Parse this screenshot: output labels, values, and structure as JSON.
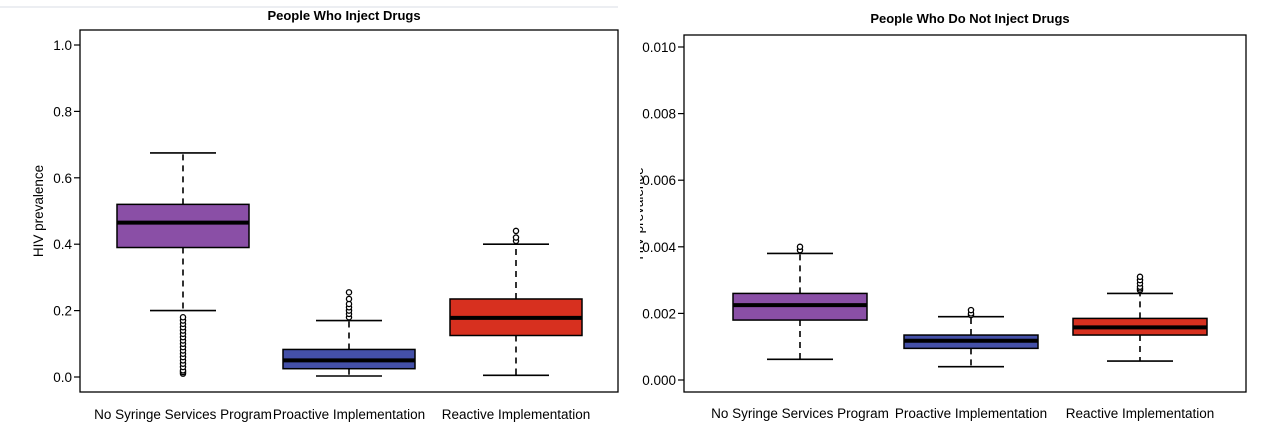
{
  "chart_data": [
    {
      "type": "boxplot",
      "title": "People Who Inject Drugs",
      "ylabel": "HIV prevalence",
      "xlabel": "",
      "ylim": [
        0,
        1.0
      ],
      "yticks": [
        "0.0",
        "0.2",
        "0.4",
        "0.6",
        "0.8",
        "1.0"
      ],
      "ytick_values": [
        0,
        0.2,
        0.4,
        0.6,
        0.8,
        1.0
      ],
      "grid": false,
      "legend": "none",
      "categories": [
        "No Syringe Services Program",
        "Proactive Implementation",
        "Reactive Implementation"
      ],
      "colors": [
        "#8a4fa6",
        "#4450a8",
        "#d7301f"
      ],
      "boxes": [
        {
          "whisker_low": 0.2,
          "q1": 0.39,
          "median": 0.465,
          "q3": 0.52,
          "whisker_high": 0.675,
          "outliers": [
            0.01,
            0.015,
            0.02,
            0.03,
            0.04,
            0.05,
            0.06,
            0.07,
            0.08,
            0.09,
            0.1,
            0.11,
            0.12,
            0.13,
            0.14,
            0.15,
            0.16,
            0.17,
            0.18
          ]
        },
        {
          "whisker_low": 0.003,
          "q1": 0.025,
          "median": 0.05,
          "q3": 0.083,
          "whisker_high": 0.17,
          "outliers": [
            0.18,
            0.19,
            0.2,
            0.21,
            0.22,
            0.235,
            0.255
          ]
        },
        {
          "whisker_low": 0.005,
          "q1": 0.125,
          "median": 0.178,
          "q3": 0.235,
          "whisker_high": 0.4,
          "outliers": [
            0.41,
            0.42,
            0.44
          ]
        }
      ]
    },
    {
      "type": "boxplot",
      "title": "People Who Do Not Inject Drugs",
      "ylabel": "HIV prevalence",
      "xlabel": "",
      "ylim": [
        0,
        0.01
      ],
      "yticks": [
        "0.000",
        "0.002",
        "0.004",
        "0.006",
        "0.008",
        "0.010"
      ],
      "ytick_values": [
        0,
        0.002,
        0.004,
        0.006,
        0.008,
        0.01
      ],
      "grid": false,
      "legend": "none",
      "categories": [
        "No Syringe Services Program",
        "Proactive Implementation",
        "Reactive Implementation"
      ],
      "colors": [
        "#8a4fa6",
        "#4450a8",
        "#d7301f"
      ],
      "boxes": [
        {
          "whisker_low": 0.00062,
          "q1": 0.0018,
          "median": 0.00225,
          "q3": 0.0026,
          "whisker_high": 0.0038,
          "outliers": [
            0.0039,
            0.004
          ]
        },
        {
          "whisker_low": 0.0004,
          "q1": 0.00095,
          "median": 0.00118,
          "q3": 0.00135,
          "whisker_high": 0.0019,
          "outliers": [
            0.00195,
            0.002,
            0.0021
          ]
        },
        {
          "whisker_low": 0.00057,
          "q1": 0.00135,
          "median": 0.00158,
          "q3": 0.00185,
          "whisker_high": 0.0026,
          "outliers": [
            0.0027,
            0.00275,
            0.0028,
            0.0029,
            0.003,
            0.0031
          ]
        }
      ]
    }
  ]
}
